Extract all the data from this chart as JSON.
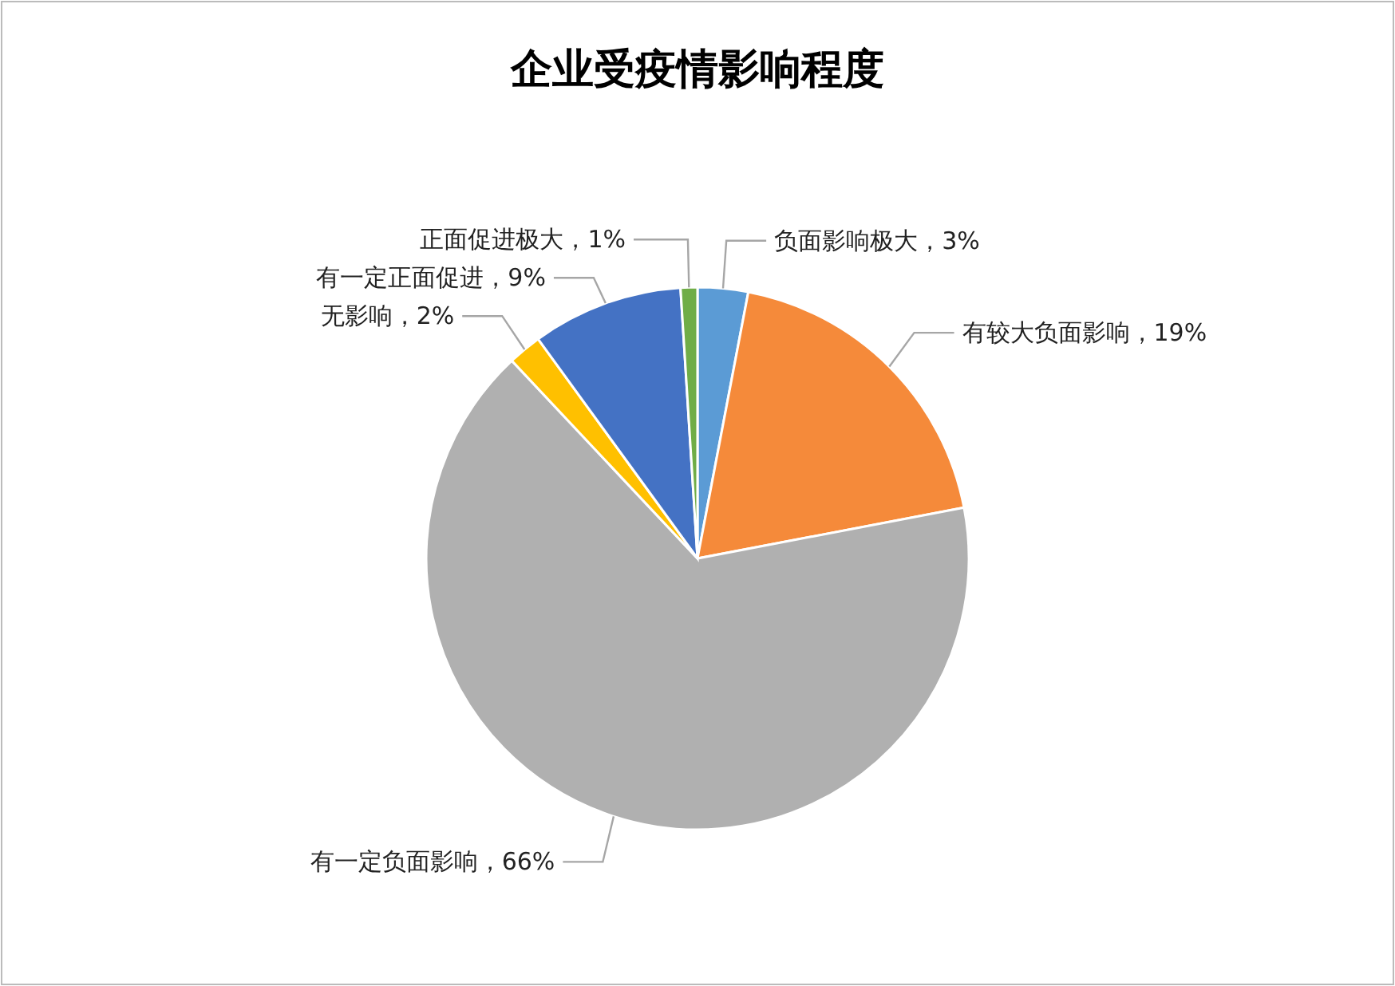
{
  "chart_data": {
    "type": "pie",
    "title": "企业受疫情影响程度",
    "categories": [
      "负面影响极大",
      "有较大负面影响",
      "有一定负面影响",
      "无影响",
      "有一定正面促进",
      "正面促进极大"
    ],
    "values": [
      3,
      19,
      66,
      2,
      9,
      1
    ],
    "colors": [
      "#5b9bd5",
      "#f58a3a",
      "#b0b0b0",
      "#ffc000",
      "#4472c4",
      "#70ad47"
    ],
    "value_labels": [
      "，3%",
      "，19%",
      "，66%",
      "，2%",
      "，9%",
      "，1%"
    ],
    "legend": false
  }
}
